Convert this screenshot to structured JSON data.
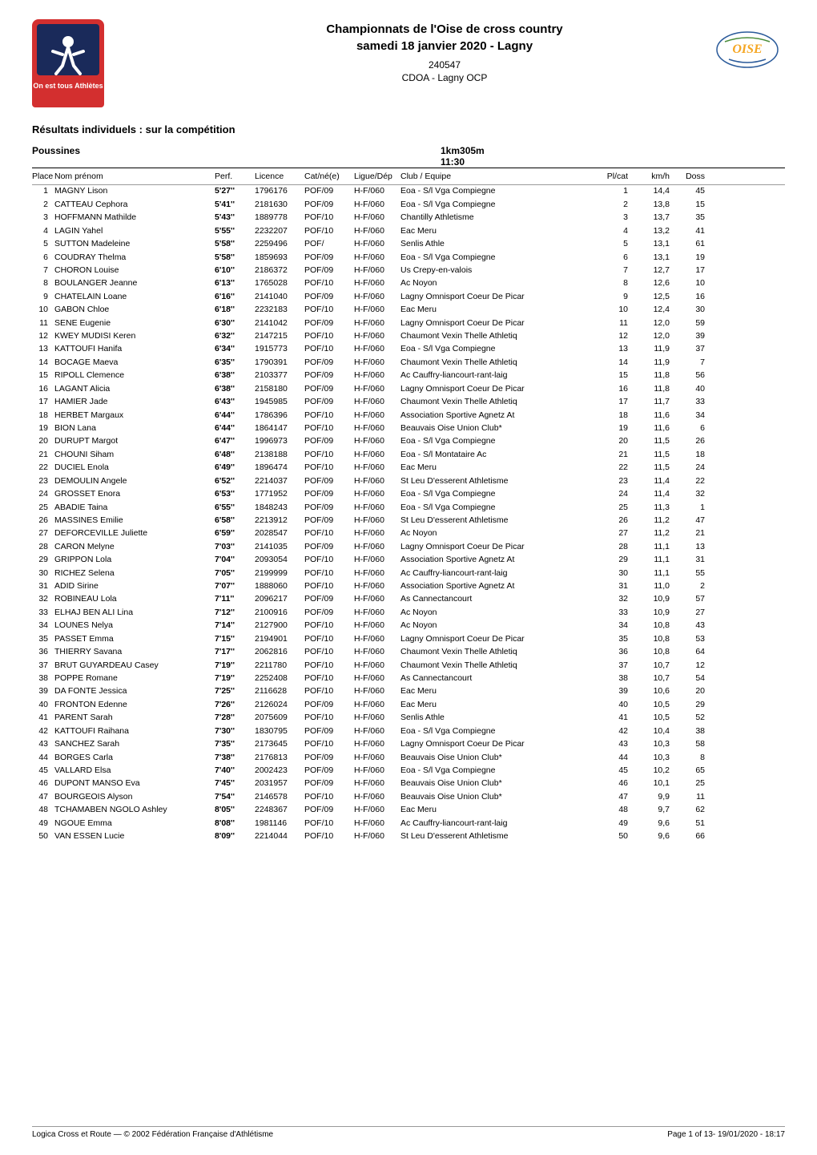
{
  "header": {
    "title_line1": "Championnats de l'Oise de cross country",
    "title_line2": "samedi 18 janvier 2020 - Lagny",
    "code": "240547",
    "org": "CDOA - Lagny OCP"
  },
  "section_title": "Résultats individuels : sur la compétition",
  "race": {
    "category": "Poussines",
    "distance_time": "1km305m  11:30"
  },
  "columns": {
    "place": "Place",
    "name": "Nom prénom",
    "perf": "Perf.",
    "licence": "Licence",
    "cat": "Cat/né(e)",
    "ligue": "Ligue/Dép",
    "club": "Club / Equipe",
    "plcat": "Pl/cat",
    "kmh": "km/h",
    "doss": "Doss"
  },
  "rows": [
    {
      "place": 1,
      "name": "MAGNY Lison",
      "perf": "5'27''",
      "lic": "1796176",
      "cat": "POF/09",
      "lig": "H-F/060",
      "club": "Eoa - S/l Vga Compiegne",
      "plcat": 1,
      "kmh": "14,4",
      "doss": 45
    },
    {
      "place": 2,
      "name": "CATTEAU Cephora",
      "perf": "5'41''",
      "lic": "2181630",
      "cat": "POF/09",
      "lig": "H-F/060",
      "club": "Eoa - S/l Vga Compiegne",
      "plcat": 2,
      "kmh": "13,8",
      "doss": 15
    },
    {
      "place": 3,
      "name": "HOFFMANN Mathilde",
      "perf": "5'43''",
      "lic": "1889778",
      "cat": "POF/10",
      "lig": "H-F/060",
      "club": "Chantilly Athletisme",
      "plcat": 3,
      "kmh": "13,7",
      "doss": 35
    },
    {
      "place": 4,
      "name": "LAGIN Yahel",
      "perf": "5'55''",
      "lic": "2232207",
      "cat": "POF/10",
      "lig": "H-F/060",
      "club": "Eac Meru",
      "plcat": 4,
      "kmh": "13,2",
      "doss": 41
    },
    {
      "place": 5,
      "name": "SUTTON Madeleine",
      "perf": "5'58''",
      "lic": "2259496",
      "cat": "POF/",
      "lig": "H-F/060",
      "club": "Senlis Athle",
      "plcat": 5,
      "kmh": "13,1",
      "doss": 61
    },
    {
      "place": 6,
      "name": "COUDRAY Thelma",
      "perf": "5'58''",
      "lic": "1859693",
      "cat": "POF/09",
      "lig": "H-F/060",
      "club": "Eoa - S/l Vga Compiegne",
      "plcat": 6,
      "kmh": "13,1",
      "doss": 19
    },
    {
      "place": 7,
      "name": "CHORON Louise",
      "perf": "6'10''",
      "lic": "2186372",
      "cat": "POF/09",
      "lig": "H-F/060",
      "club": "Us Crepy-en-valois",
      "plcat": 7,
      "kmh": "12,7",
      "doss": 17
    },
    {
      "place": 8,
      "name": "BOULANGER Jeanne",
      "perf": "6'13''",
      "lic": "1765028",
      "cat": "POF/10",
      "lig": "H-F/060",
      "club": "Ac Noyon",
      "plcat": 8,
      "kmh": "12,6",
      "doss": 10
    },
    {
      "place": 9,
      "name": "CHATELAIN Loane",
      "perf": "6'16''",
      "lic": "2141040",
      "cat": "POF/09",
      "lig": "H-F/060",
      "club": "Lagny Omnisport Coeur De Picar",
      "plcat": 9,
      "kmh": "12,5",
      "doss": 16
    },
    {
      "place": 10,
      "name": "GABON Chloe",
      "perf": "6'18''",
      "lic": "2232183",
      "cat": "POF/10",
      "lig": "H-F/060",
      "club": "Eac Meru",
      "plcat": 10,
      "kmh": "12,4",
      "doss": 30
    },
    {
      "place": 11,
      "name": "SENE Eugenie",
      "perf": "6'30''",
      "lic": "2141042",
      "cat": "POF/09",
      "lig": "H-F/060",
      "club": "Lagny Omnisport Coeur De Picar",
      "plcat": 11,
      "kmh": "12,0",
      "doss": 59
    },
    {
      "place": 12,
      "name": "KWEY MUDISI Keren",
      "perf": "6'32''",
      "lic": "2147215",
      "cat": "POF/10",
      "lig": "H-F/060",
      "club": "Chaumont Vexin Thelle Athletiq",
      "plcat": 12,
      "kmh": "12,0",
      "doss": 39
    },
    {
      "place": 13,
      "name": "KATTOUFI Hanifa",
      "perf": "6'34''",
      "lic": "1915773",
      "cat": "POF/10",
      "lig": "H-F/060",
      "club": "Eoa - S/l Vga Compiegne",
      "plcat": 13,
      "kmh": "11,9",
      "doss": 37
    },
    {
      "place": 14,
      "name": "BOCAGE Maeva",
      "perf": "6'35''",
      "lic": "1790391",
      "cat": "POF/09",
      "lig": "H-F/060",
      "club": "Chaumont Vexin Thelle Athletiq",
      "plcat": 14,
      "kmh": "11,9",
      "doss": 7
    },
    {
      "place": 15,
      "name": "RIPOLL Clemence",
      "perf": "6'38''",
      "lic": "2103377",
      "cat": "POF/09",
      "lig": "H-F/060",
      "club": "Ac Cauffry-liancourt-rant-laig",
      "plcat": 15,
      "kmh": "11,8",
      "doss": 56
    },
    {
      "place": 16,
      "name": "LAGANT Alicia",
      "perf": "6'38''",
      "lic": "2158180",
      "cat": "POF/09",
      "lig": "H-F/060",
      "club": "Lagny Omnisport Coeur De Picar",
      "plcat": 16,
      "kmh": "11,8",
      "doss": 40
    },
    {
      "place": 17,
      "name": "HAMIER Jade",
      "perf": "6'43''",
      "lic": "1945985",
      "cat": "POF/09",
      "lig": "H-F/060",
      "club": "Chaumont Vexin Thelle Athletiq",
      "plcat": 17,
      "kmh": "11,7",
      "doss": 33
    },
    {
      "place": 18,
      "name": "HERBET Margaux",
      "perf": "6'44''",
      "lic": "1786396",
      "cat": "POF/10",
      "lig": "H-F/060",
      "club": "Association Sportive Agnetz At",
      "plcat": 18,
      "kmh": "11,6",
      "doss": 34
    },
    {
      "place": 19,
      "name": "BION Lana",
      "perf": "6'44''",
      "lic": "1864147",
      "cat": "POF/10",
      "lig": "H-F/060",
      "club": "Beauvais Oise Union Club*",
      "plcat": 19,
      "kmh": "11,6",
      "doss": 6
    },
    {
      "place": 20,
      "name": "DURUPT Margot",
      "perf": "6'47''",
      "lic": "1996973",
      "cat": "POF/09",
      "lig": "H-F/060",
      "club": "Eoa - S/l Vga Compiegne",
      "plcat": 20,
      "kmh": "11,5",
      "doss": 26
    },
    {
      "place": 21,
      "name": "CHOUNI Siham",
      "perf": "6'48''",
      "lic": "2138188",
      "cat": "POF/10",
      "lig": "H-F/060",
      "club": "Eoa - S/l Montataire Ac",
      "plcat": 21,
      "kmh": "11,5",
      "doss": 18
    },
    {
      "place": 22,
      "name": "DUCIEL Enola",
      "perf": "6'49''",
      "lic": "1896474",
      "cat": "POF/10",
      "lig": "H-F/060",
      "club": "Eac Meru",
      "plcat": 22,
      "kmh": "11,5",
      "doss": 24
    },
    {
      "place": 23,
      "name": "DEMOULIN Angele",
      "perf": "6'52''",
      "lic": "2214037",
      "cat": "POF/09",
      "lig": "H-F/060",
      "club": "St Leu D'esserent Athletisme",
      "plcat": 23,
      "kmh": "11,4",
      "doss": 22
    },
    {
      "place": 24,
      "name": "GROSSET Enora",
      "perf": "6'53''",
      "lic": "1771952",
      "cat": "POF/09",
      "lig": "H-F/060",
      "club": "Eoa - S/l Vga Compiegne",
      "plcat": 24,
      "kmh": "11,4",
      "doss": 32
    },
    {
      "place": 25,
      "name": "ABADIE Taina",
      "perf": "6'55''",
      "lic": "1848243",
      "cat": "POF/09",
      "lig": "H-F/060",
      "club": "Eoa - S/l Vga Compiegne",
      "plcat": 25,
      "kmh": "11,3",
      "doss": 1
    },
    {
      "place": 26,
      "name": "MASSINES Emilie",
      "perf": "6'58''",
      "lic": "2213912",
      "cat": "POF/09",
      "lig": "H-F/060",
      "club": "St Leu D'esserent Athletisme",
      "plcat": 26,
      "kmh": "11,2",
      "doss": 47
    },
    {
      "place": 27,
      "name": "DEFORCEVILLE Juliette",
      "perf": "6'59''",
      "lic": "2028547",
      "cat": "POF/10",
      "lig": "H-F/060",
      "club": "Ac Noyon",
      "plcat": 27,
      "kmh": "11,2",
      "doss": 21
    },
    {
      "place": 28,
      "name": "CARON Melyne",
      "perf": "7'03''",
      "lic": "2141035",
      "cat": "POF/09",
      "lig": "H-F/060",
      "club": "Lagny Omnisport Coeur De Picar",
      "plcat": 28,
      "kmh": "11,1",
      "doss": 13
    },
    {
      "place": 29,
      "name": "GRIPPON Lola",
      "perf": "7'04''",
      "lic": "2093054",
      "cat": "POF/10",
      "lig": "H-F/060",
      "club": "Association Sportive Agnetz At",
      "plcat": 29,
      "kmh": "11,1",
      "doss": 31
    },
    {
      "place": 30,
      "name": "RICHEZ Selena",
      "perf": "7'05''",
      "lic": "2199999",
      "cat": "POF/10",
      "lig": "H-F/060",
      "club": "Ac Cauffry-liancourt-rant-laig",
      "plcat": 30,
      "kmh": "11,1",
      "doss": 55
    },
    {
      "place": 31,
      "name": "ADID Sirine",
      "perf": "7'07''",
      "lic": "1888060",
      "cat": "POF/10",
      "lig": "H-F/060",
      "club": "Association Sportive Agnetz At",
      "plcat": 31,
      "kmh": "11,0",
      "doss": 2
    },
    {
      "place": 32,
      "name": "ROBINEAU Lola",
      "perf": "7'11''",
      "lic": "2096217",
      "cat": "POF/09",
      "lig": "H-F/060",
      "club": "As Cannectancourt",
      "plcat": 32,
      "kmh": "10,9",
      "doss": 57
    },
    {
      "place": 33,
      "name": "ELHAJ BEN ALI Lina",
      "perf": "7'12''",
      "lic": "2100916",
      "cat": "POF/09",
      "lig": "H-F/060",
      "club": "Ac Noyon",
      "plcat": 33,
      "kmh": "10,9",
      "doss": 27
    },
    {
      "place": 34,
      "name": "LOUNES Nelya",
      "perf": "7'14''",
      "lic": "2127900",
      "cat": "POF/10",
      "lig": "H-F/060",
      "club": "Ac Noyon",
      "plcat": 34,
      "kmh": "10,8",
      "doss": 43
    },
    {
      "place": 35,
      "name": "PASSET Emma",
      "perf": "7'15''",
      "lic": "2194901",
      "cat": "POF/10",
      "lig": "H-F/060",
      "club": "Lagny Omnisport Coeur De Picar",
      "plcat": 35,
      "kmh": "10,8",
      "doss": 53
    },
    {
      "place": 36,
      "name": "THIERRY Savana",
      "perf": "7'17''",
      "lic": "2062816",
      "cat": "POF/10",
      "lig": "H-F/060",
      "club": "Chaumont Vexin Thelle Athletiq",
      "plcat": 36,
      "kmh": "10,8",
      "doss": 64
    },
    {
      "place": 37,
      "name": "BRUT GUYARDEAU Casey",
      "perf": "7'19''",
      "lic": "2211780",
      "cat": "POF/10",
      "lig": "H-F/060",
      "club": "Chaumont Vexin Thelle Athletiq",
      "plcat": 37,
      "kmh": "10,7",
      "doss": 12
    },
    {
      "place": 38,
      "name": "POPPE Romane",
      "perf": "7'19''",
      "lic": "2252408",
      "cat": "POF/10",
      "lig": "H-F/060",
      "club": "As Cannectancourt",
      "plcat": 38,
      "kmh": "10,7",
      "doss": 54
    },
    {
      "place": 39,
      "name": "DA FONTE Jessica",
      "perf": "7'25''",
      "lic": "2116628",
      "cat": "POF/10",
      "lig": "H-F/060",
      "club": "Eac Meru",
      "plcat": 39,
      "kmh": "10,6",
      "doss": 20
    },
    {
      "place": 40,
      "name": "FRONTON Edenne",
      "perf": "7'26''",
      "lic": "2126024",
      "cat": "POF/09",
      "lig": "H-F/060",
      "club": "Eac Meru",
      "plcat": 40,
      "kmh": "10,5",
      "doss": 29
    },
    {
      "place": 41,
      "name": "PARENT Sarah",
      "perf": "7'28''",
      "lic": "2075609",
      "cat": "POF/10",
      "lig": "H-F/060",
      "club": "Senlis Athle",
      "plcat": 41,
      "kmh": "10,5",
      "doss": 52
    },
    {
      "place": 42,
      "name": "KATTOUFI Raihana",
      "perf": "7'30''",
      "lic": "1830795",
      "cat": "POF/09",
      "lig": "H-F/060",
      "club": "Eoa - S/l Vga Compiegne",
      "plcat": 42,
      "kmh": "10,4",
      "doss": 38
    },
    {
      "place": 43,
      "name": "SANCHEZ Sarah",
      "perf": "7'35''",
      "lic": "2173645",
      "cat": "POF/10",
      "lig": "H-F/060",
      "club": "Lagny Omnisport Coeur De Picar",
      "plcat": 43,
      "kmh": "10,3",
      "doss": 58
    },
    {
      "place": 44,
      "name": "BORGES Carla",
      "perf": "7'38''",
      "lic": "2176813",
      "cat": "POF/09",
      "lig": "H-F/060",
      "club": "Beauvais Oise Union Club*",
      "plcat": 44,
      "kmh": "10,3",
      "doss": 8
    },
    {
      "place": 45,
      "name": "VALLARD Elsa",
      "perf": "7'40''",
      "lic": "2002423",
      "cat": "POF/09",
      "lig": "H-F/060",
      "club": "Eoa - S/l Vga Compiegne",
      "plcat": 45,
      "kmh": "10,2",
      "doss": 65
    },
    {
      "place": 46,
      "name": "DUPONT MANSO Eva",
      "perf": "7'45''",
      "lic": "2031957",
      "cat": "POF/09",
      "lig": "H-F/060",
      "club": "Beauvais Oise Union Club*",
      "plcat": 46,
      "kmh": "10,1",
      "doss": 25
    },
    {
      "place": 47,
      "name": "BOURGEOIS Alyson",
      "perf": "7'54''",
      "lic": "2146578",
      "cat": "POF/10",
      "lig": "H-F/060",
      "club": "Beauvais Oise Union Club*",
      "plcat": 47,
      "kmh": "9,9",
      "doss": 11
    },
    {
      "place": 48,
      "name": "TCHAMABEN NGOLO Ashley",
      "perf": "8'05''",
      "lic": "2248367",
      "cat": "POF/09",
      "lig": "H-F/060",
      "club": "Eac Meru",
      "plcat": 48,
      "kmh": "9,7",
      "doss": 62
    },
    {
      "place": 49,
      "name": "NGOUE Emma",
      "perf": "8'08''",
      "lic": "1981146",
      "cat": "POF/10",
      "lig": "H-F/060",
      "club": "Ac Cauffry-liancourt-rant-laig",
      "plcat": 49,
      "kmh": "9,6",
      "doss": 51
    },
    {
      "place": 50,
      "name": "VAN ESSEN Lucie",
      "perf": "8'09''",
      "lic": "2214044",
      "cat": "POF/10",
      "lig": "H-F/060",
      "club": "St Leu D'esserent Athletisme",
      "plcat": 50,
      "kmh": "9,6",
      "doss": 66
    }
  ],
  "footer": {
    "left": "Logica Cross et Route — © 2002 Fédération Française d'Athlétisme",
    "right": "Page 1 of 13-  19/01/2020    - 18:17"
  },
  "colors": {
    "text": "#000000",
    "bg": "#ffffff",
    "ffa_red": "#d32f2f",
    "oise_orange": "#f5a623",
    "oise_green": "#4a8c3a",
    "oise_blue": "#2a5a9a",
    "border": "#999999"
  }
}
